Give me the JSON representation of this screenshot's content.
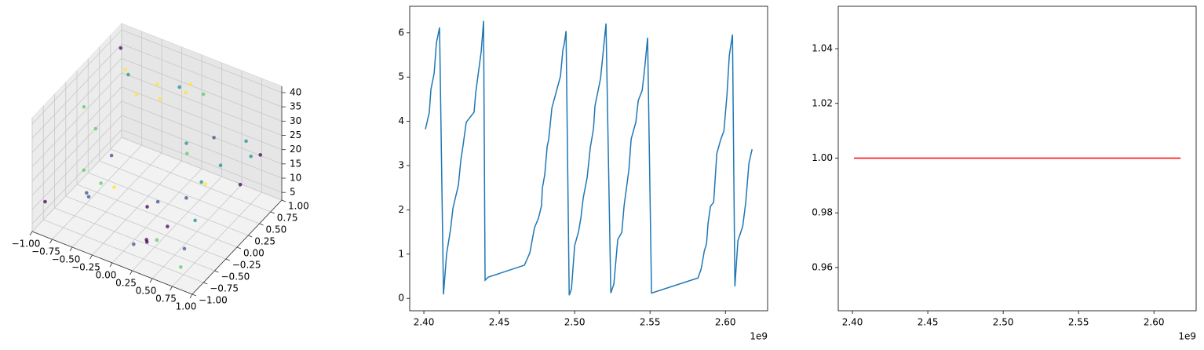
{
  "chart_data": [
    {
      "type": "scatter3d",
      "x": [
        -0.9,
        -0.6,
        0.2,
        0.8,
        -0.3,
        0.5,
        0.9,
        -0.8,
        0.1,
        -0.5,
        0.7,
        0.3,
        -0.95,
        0.6,
        -0.2,
        0.95,
        -0.7,
        0.4,
        0.0,
        -0.4,
        0.85,
        -0.1,
        0.55,
        -0.65,
        0.15,
        0.75,
        -0.85,
        0.35,
        -0.45,
        0.65,
        -0.25,
        0.9,
        -0.55,
        0.05,
        0.45,
        -0.75,
        0.25,
        -0.15,
        0.8,
        -0.35
      ],
      "y": [
        0.8,
        -0.5,
        0.3,
        -0.9,
        0.6,
        0.1,
        0.7,
        -0.2,
        -0.7,
        0.9,
        -0.4,
        0.5,
        -0.8,
        0.2,
        -0.6,
        0.4,
        0.0,
        -0.95,
        0.75,
        -0.3,
        -0.1,
        0.85,
        -0.75,
        0.45,
        -0.25,
        0.65,
        0.15,
        -0.85,
        0.35,
        -0.55,
        0.95,
        0.25,
        -0.65,
        0.55,
        -0.15,
        0.7,
        -0.45,
        0.05,
        -0.35,
        -0.9
      ],
      "z": [
        38,
        12,
        25,
        8,
        30,
        18,
        22,
        35,
        5,
        28,
        15,
        40,
        10,
        33,
        20,
        27,
        6,
        14,
        36,
        24,
        31,
        9,
        17,
        39,
        13,
        26,
        21,
        11,
        34,
        7,
        29,
        19,
        23,
        37,
        16,
        32,
        4,
        3,
        28,
        20
      ],
      "colors": [
        "#440154",
        "#3b528b",
        "#21918c",
        "#5ec962",
        "#fde725",
        "#21918c",
        "#440154",
        "#5ec962",
        "#3b528b",
        "#fde725",
        "#21918c",
        "#5ec962",
        "#440154",
        "#3b528b",
        "#fde725",
        "#21918c",
        "#5ec962",
        "#440154",
        "#fde725",
        "#3b528b",
        "#21918c",
        "#5ec962",
        "#440154",
        "#fde725",
        "#3b528b",
        "#21918c",
        "#5ec962",
        "#440154",
        "#fde725",
        "#3b528b",
        "#21918c",
        "#440154",
        "#5ec962",
        "#fde725",
        "#3b528b",
        "#21918c",
        "#5ec962",
        "#440154",
        "#fde725",
        "#3b528b"
      ],
      "xlim": [
        -1,
        1
      ],
      "ylim": [
        -1,
        1
      ],
      "zlim": [
        2.3,
        42.2
      ],
      "xticks": [
        {
          "value": -1,
          "label": "−1.00"
        },
        {
          "value": -0.75,
          "label": "−0.75"
        },
        {
          "value": -0.5,
          "label": "−0.50"
        },
        {
          "value": -0.25,
          "label": "−0.25"
        },
        {
          "value": 0,
          "label": "0.00"
        },
        0.25,
        {
          "value": 0.5,
          "label": "0.50"
        },
        0.75,
        {
          "value": 1,
          "label": "1.00"
        }
      ],
      "yticks": [
        {
          "value": -1,
          "label": "−1.00"
        },
        {
          "value": -0.75,
          "label": "−0.75"
        },
        {
          "value": -0.5,
          "label": "−0.50"
        },
        {
          "value": -0.25,
          "label": "−0.25"
        },
        {
          "value": 0,
          "label": "0.00"
        },
        0.25,
        {
          "value": 0.5,
          "label": "0.50"
        },
        0.75,
        {
          "value": 1,
          "label": "1.00"
        }
      ],
      "zticks": [
        5,
        10,
        15,
        20,
        25,
        30,
        35,
        40
      ],
      "grid": true
    },
    {
      "type": "line",
      "x": [
        2.401,
        2.4036,
        2.4047,
        2.4068,
        2.4083,
        2.4104,
        2.413,
        2.4151,
        2.4177,
        2.4193,
        2.4229,
        2.4245,
        2.426,
        2.4281,
        2.4333,
        2.4344,
        2.436,
        2.438,
        2.4396,
        2.4406,
        2.4427,
        2.4667,
        2.4703,
        2.4734,
        2.476,
        2.478,
        2.4786,
        2.4802,
        2.4818,
        2.4828,
        2.4849,
        2.4906,
        2.4922,
        2.4932,
        2.4943,
        2.4964,
        2.4979,
        2.5,
        2.5026,
        2.5042,
        2.5057,
        2.5083,
        2.5104,
        2.5125,
        2.5135,
        2.5172,
        2.5208,
        2.524,
        2.526,
        2.5286,
        2.5313,
        2.5328,
        2.536,
        2.5375,
        2.5406,
        2.5422,
        2.5448,
        2.5464,
        2.5484,
        2.551,
        2.5818,
        2.5839,
        2.586,
        2.5875,
        2.5885,
        2.5901,
        2.5922,
        2.5943,
        2.5969,
        2.599,
        2.601,
        2.6026,
        2.6047,
        2.6063,
        2.6083,
        2.6115,
        2.6135,
        2.6156,
        2.6177
      ],
      "values": [
        3.82,
        4.2,
        4.73,
        5.08,
        5.77,
        6.12,
        0.09,
        1.01,
        1.56,
        2.04,
        2.56,
        3.12,
        3.46,
        3.98,
        4.21,
        4.65,
        5.06,
        5.57,
        6.27,
        0.41,
        0.48,
        0.75,
        1.03,
        1.6,
        1.81,
        2.09,
        2.49,
        2.8,
        3.44,
        3.59,
        4.3,
        5.02,
        5.61,
        5.77,
        6.04,
        0.07,
        0.21,
        1.19,
        1.51,
        1.83,
        2.27,
        2.73,
        3.41,
        3.83,
        4.35,
        4.97,
        6.21,
        0.12,
        0.32,
        1.33,
        1.49,
        2.09,
        2.91,
        3.6,
        3.98,
        4.47,
        4.7,
        5.18,
        5.89,
        0.12,
        0.46,
        0.66,
        1.07,
        1.24,
        1.7,
        2.08,
        2.17,
        3.27,
        3.59,
        3.78,
        4.58,
        5.49,
        5.96,
        0.27,
        1.3,
        1.63,
        2.17,
        3.05,
        3.37
      ],
      "color": "#1f77b4",
      "xlim": [
        2.3906,
        2.628
      ],
      "ylim": [
        -0.28,
        6.6
      ],
      "xticks": [
        {
          "value": 2.4,
          "label": "2.40"
        },
        2.45,
        {
          "value": 2.5,
          "label": "2.50"
        },
        2.55,
        {
          "value": 2.6,
          "label": "2.60"
        }
      ],
      "yticks": [
        0,
        1,
        2,
        3,
        4,
        5,
        6
      ],
      "x_offset_label": "1e9"
    },
    {
      "type": "line",
      "x": [
        2.401,
        2.6177
      ],
      "values": [
        1,
        1
      ],
      "color": "#ff0000",
      "xlim": [
        2.3906,
        2.628
      ],
      "ylim": [
        0.9442,
        1.0555
      ],
      "xticks": [
        {
          "value": 2.4,
          "label": "2.40"
        },
        2.45,
        {
          "value": 2.5,
          "label": "2.50"
        },
        2.55,
        {
          "value": 2.6,
          "label": "2.60"
        }
      ],
      "yticks": [
        0.96,
        0.98,
        {
          "value": 1,
          "label": "1.00"
        },
        1.02,
        1.04
      ],
      "x_offset_label": "1e9"
    }
  ]
}
